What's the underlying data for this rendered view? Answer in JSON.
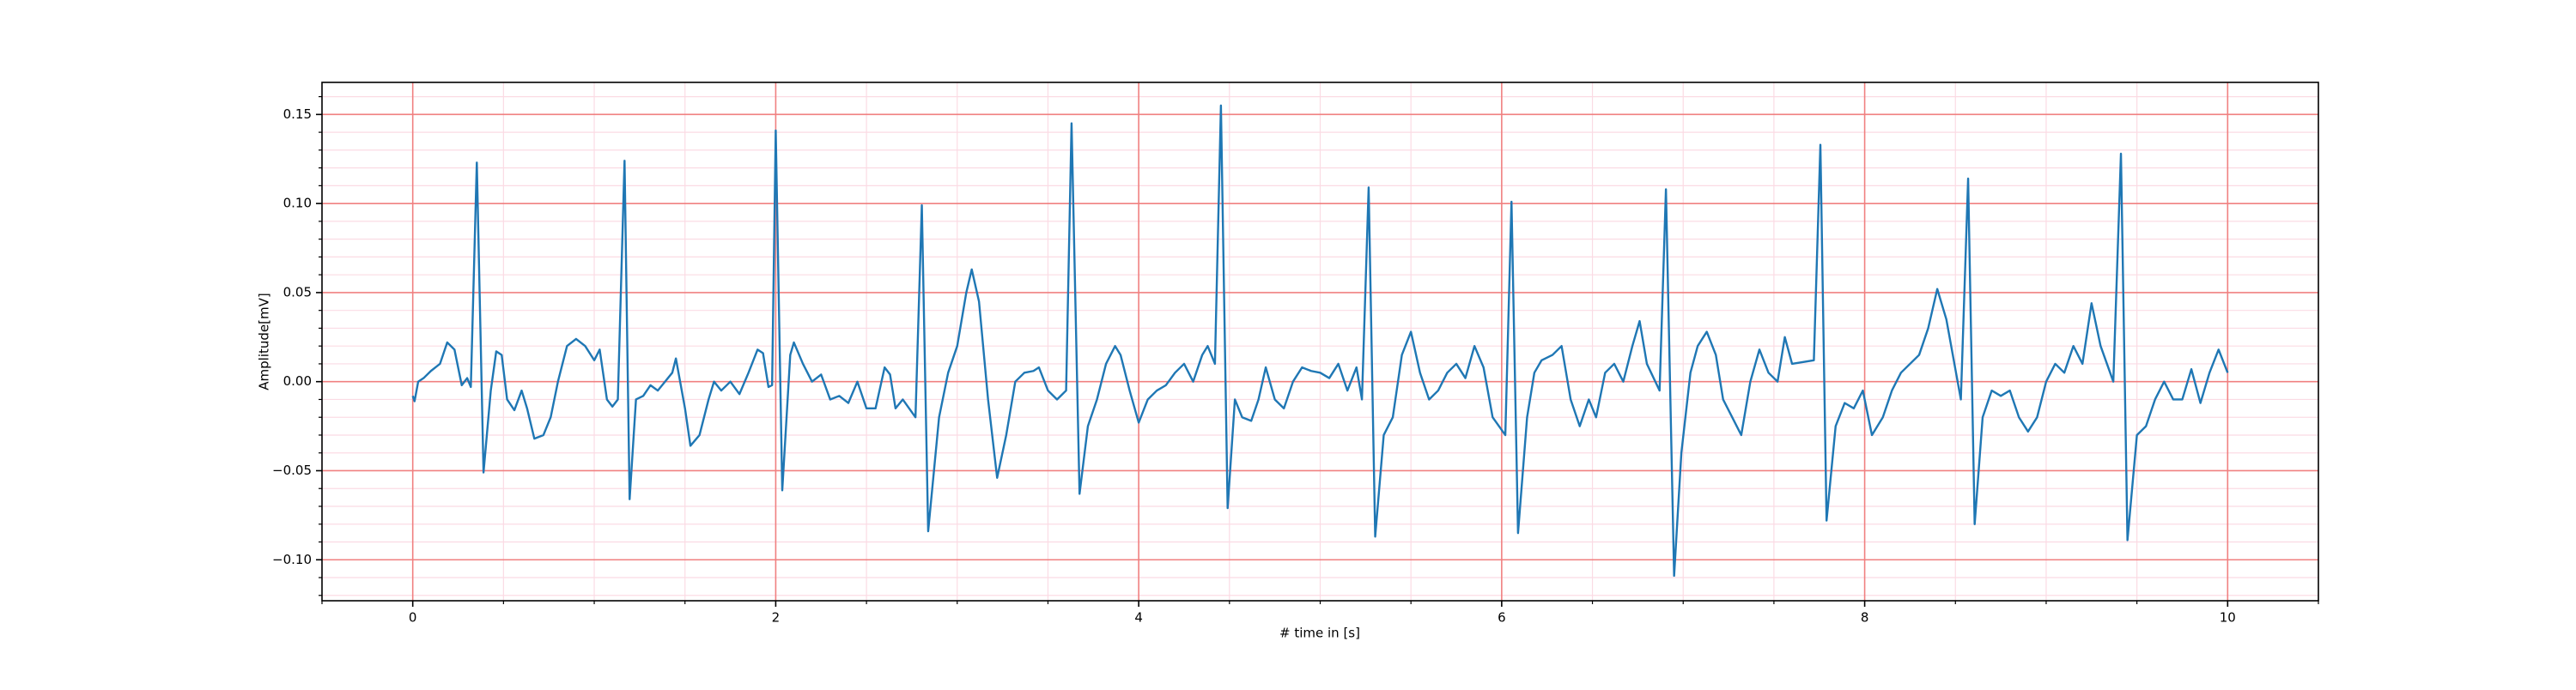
{
  "chart_data": {
    "type": "line",
    "xlabel": "# time in [s]",
    "ylabel": "Amplitude[mV]",
    "xlim": [
      -0.5,
      10.5
    ],
    "ylim": [
      -0.123,
      0.168
    ],
    "xticks": [
      0,
      2,
      4,
      6,
      8,
      10
    ],
    "yticks": [
      {
        "value": -0.1,
        "label": "−0.10"
      },
      {
        "value": -0.05,
        "label": "−0.05"
      },
      {
        "value": 0,
        "label": "0.00"
      },
      {
        "value": 0.05,
        "label": "0.05"
      },
      {
        "value": 0.1,
        "label": "0.10"
      },
      0.15
    ],
    "xminor_ticks": [
      -0.5,
      0.5,
      1,
      1.5,
      2.5,
      3,
      3.5,
      4.5,
      5,
      5.5,
      6.5,
      7,
      7.5,
      8.5,
      9,
      9.5,
      10.5
    ],
    "yminor_ticks": [
      -0.12,
      -0.11,
      -0.09,
      -0.08,
      -0.07,
      -0.06,
      -0.04,
      -0.03,
      -0.02,
      -0.01,
      0.01,
      0.02,
      0.03,
      0.04,
      0.06,
      0.07,
      0.08,
      0.09,
      0.11,
      0.12,
      0.13,
      0.14,
      0.16
    ],
    "grid": true,
    "major_grid_color": "#f08080",
    "minor_grid_color": "#fbdbe4",
    "series": [
      {
        "color": "#1f77b4",
        "x": [
          0,
          0.01,
          0.03,
          0.06,
          0.1,
          0.15,
          0.19,
          0.23,
          0.27,
          0.3,
          0.32,
          0.353,
          0.39,
          0.43,
          0.46,
          0.49,
          0.52,
          0.56,
          0.6,
          0.63,
          0.67,
          0.72,
          0.76,
          0.8,
          0.85,
          0.9,
          0.95,
          1.0,
          1.03,
          1.07,
          1.1,
          1.13,
          1.167,
          1.195,
          1.23,
          1.27,
          1.31,
          1.35,
          1.39,
          1.43,
          1.45,
          1.5,
          1.53,
          1.58,
          1.63,
          1.66,
          1.7,
          1.75,
          1.8,
          1.85,
          1.9,
          1.93,
          1.96,
          1.98,
          2.0,
          2.036,
          2.08,
          2.1,
          2.15,
          2.2,
          2.25,
          2.3,
          2.35,
          2.4,
          2.45,
          2.5,
          2.55,
          2.6,
          2.63,
          2.66,
          2.7,
          2.77,
          2.805,
          2.84,
          2.9,
          2.95,
          3.0,
          3.05,
          3.08,
          3.12,
          3.17,
          3.22,
          3.27,
          3.32,
          3.37,
          3.42,
          3.45,
          3.5,
          3.55,
          3.6,
          3.63,
          3.674,
          3.72,
          3.77,
          3.82,
          3.87,
          3.9,
          3.95,
          4.0,
          4.05,
          4.1,
          4.15,
          4.2,
          4.25,
          4.3,
          4.35,
          4.38,
          4.42,
          4.453,
          4.49,
          4.53,
          4.57,
          4.62,
          4.66,
          4.7,
          4.75,
          4.8,
          4.85,
          4.9,
          4.95,
          5.0,
          5.05,
          5.1,
          5.15,
          5.2,
          5.23,
          5.267,
          5.303,
          5.35,
          5.4,
          5.45,
          5.5,
          5.55,
          5.6,
          5.65,
          5.7,
          5.75,
          5.8,
          5.85,
          5.9,
          5.95,
          6.02,
          6.054,
          6.09,
          6.14,
          6.18,
          6.22,
          6.28,
          6.33,
          6.38,
          6.43,
          6.48,
          6.52,
          6.57,
          6.62,
          6.67,
          6.72,
          6.76,
          6.8,
          6.87,
          6.905,
          6.95,
          6.99,
          7.04,
          7.08,
          7.13,
          7.18,
          7.22,
          7.27,
          7.32,
          7.37,
          7.42,
          7.47,
          7.52,
          7.56,
          7.6,
          7.72,
          7.756,
          7.79,
          7.84,
          7.89,
          7.94,
          7.99,
          8.04,
          8.1,
          8.15,
          8.2,
          8.25,
          8.3,
          8.35,
          8.4,
          8.45,
          8.53,
          8.57,
          8.606,
          8.65,
          8.7,
          8.75,
          8.8,
          8.85,
          8.9,
          8.95,
          9.0,
          9.05,
          9.1,
          9.15,
          9.2,
          9.25,
          9.3,
          9.37,
          9.412,
          9.448,
          9.5,
          9.55,
          9.6,
          9.65,
          9.7,
          9.75,
          9.8,
          9.85,
          9.9,
          9.95,
          10.0
        ],
        "values": [
          -0.008,
          -0.011,
          0.0,
          0.002,
          0.006,
          0.01,
          0.022,
          0.018,
          -0.002,
          0.002,
          -0.003,
          0.123,
          -0.051,
          -0.005,
          0.017,
          0.015,
          -0.01,
          -0.016,
          -0.005,
          -0.015,
          -0.032,
          -0.03,
          -0.02,
          0.0,
          0.02,
          0.024,
          0.02,
          0.012,
          0.018,
          -0.01,
          -0.014,
          -0.01,
          0.124,
          -0.066,
          -0.01,
          -0.008,
          -0.002,
          -0.005,
          0.0,
          0.005,
          0.013,
          -0.015,
          -0.036,
          -0.03,
          -0.01,
          0.0,
          -0.005,
          0.0,
          -0.007,
          0.005,
          0.018,
          0.016,
          -0.003,
          -0.002,
          0.141,
          -0.061,
          0.015,
          0.022,
          0.01,
          0.0,
          0.004,
          -0.01,
          -0.008,
          -0.012,
          0.0,
          -0.015,
          -0.015,
          0.008,
          0.004,
          -0.015,
          -0.01,
          -0.02,
          0.099,
          -0.084,
          -0.02,
          0.005,
          0.02,
          0.05,
          0.063,
          0.045,
          -0.01,
          -0.054,
          -0.03,
          0.0,
          0.005,
          0.006,
          0.008,
          -0.005,
          -0.01,
          -0.005,
          0.145,
          -0.063,
          -0.025,
          -0.01,
          0.01,
          0.02,
          0.015,
          -0.005,
          -0.023,
          -0.01,
          -0.005,
          -0.002,
          0.005,
          0.01,
          0.0,
          0.015,
          0.02,
          0.01,
          0.155,
          -0.071,
          -0.01,
          -0.02,
          -0.022,
          -0.01,
          0.008,
          -0.01,
          -0.015,
          0.0,
          0.008,
          0.006,
          0.005,
          0.002,
          0.01,
          -0.005,
          0.008,
          -0.01,
          0.109,
          -0.087,
          -0.03,
          -0.02,
          0.015,
          0.028,
          0.005,
          -0.01,
          -0.005,
          0.005,
          0.01,
          0.002,
          0.02,
          0.008,
          -0.02,
          -0.03,
          0.101,
          -0.085,
          -0.02,
          0.005,
          0.012,
          0.015,
          0.02,
          -0.01,
          -0.025,
          -0.01,
          -0.02,
          0.005,
          0.01,
          0.0,
          0.02,
          0.034,
          0.01,
          -0.005,
          0.108,
          -0.109,
          -0.04,
          0.005,
          0.02,
          0.028,
          0.015,
          -0.01,
          -0.02,
          -0.03,
          0.0,
          0.018,
          0.005,
          0.0,
          0.025,
          0.01,
          0.012,
          0.133,
          -0.078,
          -0.025,
          -0.012,
          -0.015,
          -0.005,
          -0.03,
          -0.02,
          -0.005,
          0.005,
          0.01,
          0.015,
          0.03,
          0.052,
          0.035,
          -0.01,
          0.114,
          -0.08,
          -0.02,
          -0.005,
          -0.008,
          -0.005,
          -0.02,
          -0.028,
          -0.02,
          0.0,
          0.01,
          0.005,
          0.02,
          0.01,
          0.044,
          0.02,
          0.0,
          0.128,
          -0.089,
          -0.03,
          -0.025,
          -0.01,
          0.0,
          -0.01,
          -0.01,
          0.007,
          -0.012,
          0.005,
          0.018,
          0.005
        ]
      }
    ]
  }
}
